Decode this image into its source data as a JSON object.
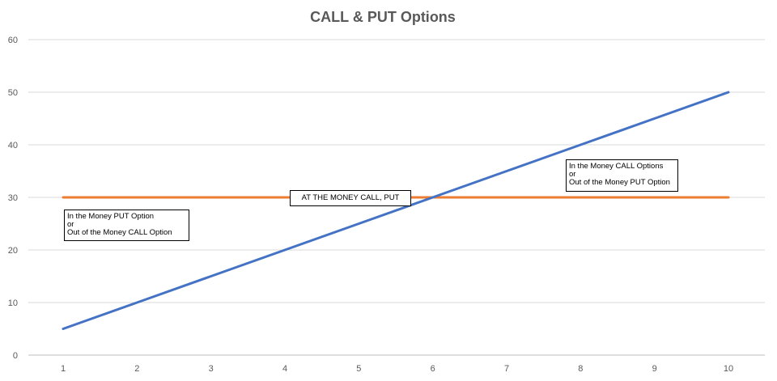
{
  "chart_data": {
    "type": "line",
    "title": "CALL & PUT Options",
    "xlabel": "",
    "ylabel": "",
    "x": [
      1,
      2,
      3,
      4,
      5,
      6,
      7,
      8,
      9,
      10
    ],
    "xlim": [
      1,
      10
    ],
    "ylim": [
      0,
      60
    ],
    "yticks": [
      0,
      10,
      20,
      30,
      40,
      50,
      60
    ],
    "grid": true,
    "series": [
      {
        "values": [
          5,
          10,
          15,
          20,
          25,
          30,
          35,
          40,
          45,
          50
        ],
        "color": "#4472C4"
      },
      {
        "values": [
          30,
          30,
          30,
          30,
          30,
          30,
          30,
          30,
          30,
          30
        ],
        "color": "#ED7D31"
      }
    ],
    "annotations": [
      {
        "lines": [
          "In the Money PUT Option",
          "or",
          "Out of the Money CALL Option"
        ]
      },
      {
        "lines": [
          "AT THE MONEY CALL, PUT"
        ]
      },
      {
        "lines": [
          "In the Money CALL Options",
          "or",
          "Out of the Money PUT Option"
        ]
      }
    ]
  }
}
